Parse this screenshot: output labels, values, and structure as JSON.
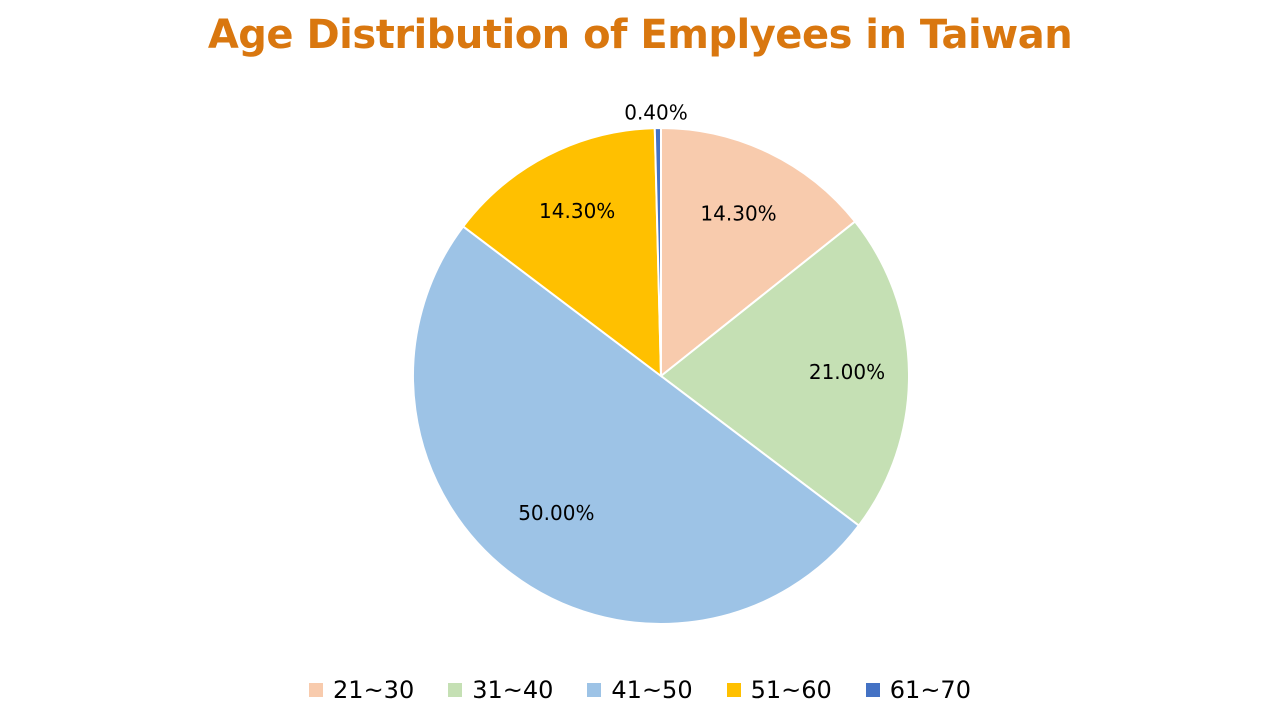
{
  "chart_data": {
    "type": "pie",
    "title": "Age Distribution of Emplyees in Taiwan",
    "categories": [
      "21~30",
      "31~40",
      "41~50",
      "51~60",
      "61~70"
    ],
    "values": [
      14.3,
      21.0,
      50.0,
      14.3,
      0.4
    ],
    "data_labels": [
      "14.30%",
      "21.00%",
      "50.00%",
      "14.30%",
      "0.40%"
    ],
    "colors": [
      "#f8cbad",
      "#c5e0b4",
      "#9dc3e6",
      "#ffc000",
      "#4472c4"
    ],
    "legend_position": "bottom",
    "start_angle": "12 o'clock",
    "direction": "clockwise"
  },
  "title_color": "#d9770f"
}
